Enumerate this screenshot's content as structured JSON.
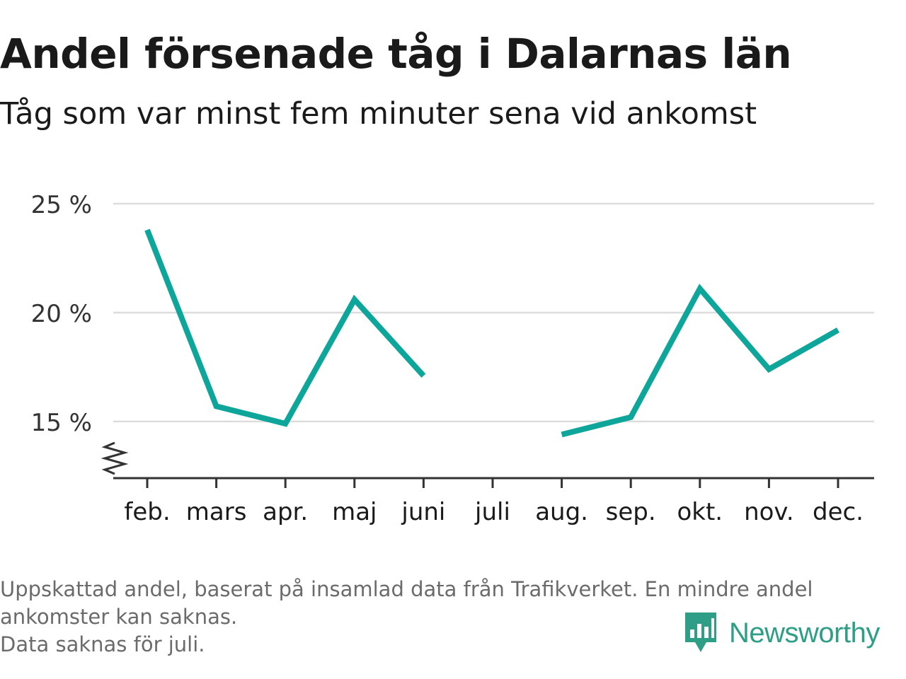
{
  "header": {
    "title": "Andel försenade tåg i Dalarnas län",
    "subtitle": "Tåg som var minst fem minuter sena vid ankomst"
  },
  "chart_data": {
    "type": "line",
    "categories": [
      "feb.",
      "mars",
      "apr.",
      "maj",
      "juni",
      "juli",
      "aug.",
      "sep.",
      "okt.",
      "nov.",
      "dec."
    ],
    "series": [
      {
        "values": [
          23.8,
          15.7,
          14.9,
          20.6,
          17.1,
          null,
          14.4,
          15.2,
          21.1,
          17.4,
          19.2
        ],
        "color": "#0ea69a"
      }
    ],
    "yticks": [
      15,
      20,
      25
    ],
    "ytick_labels": [
      "15 %",
      "20 %",
      "25 %"
    ],
    "ylim": [
      12.4,
      25
    ],
    "y_axis_break": true,
    "grid": true,
    "colors": {
      "line": "#0ea69a",
      "grid": "#dddddd",
      "axis": "#333333"
    }
  },
  "footnote": {
    "line1": "Uppskattad andel, baserat på insamlad data från Trafikverket. En mindre andel",
    "line2": "ankomster kan saknas.",
    "line3": "Data saknas för juli."
  },
  "brand": {
    "name": "Newsworthy",
    "icon": "newsworthy-logo-icon",
    "color": "#2f9e86"
  }
}
